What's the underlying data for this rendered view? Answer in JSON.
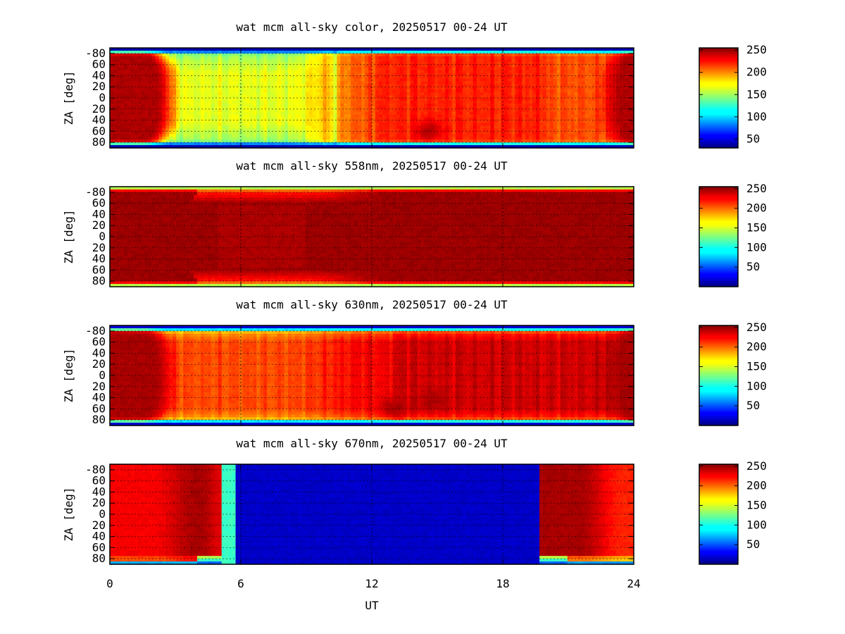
{
  "chart_data": [
    {
      "type": "heatmap",
      "title": "wat mcm all-sky color, 20250517 00-24 UT",
      "ylabel": "ZA [deg]",
      "xlim": [
        0,
        24
      ],
      "ylim": [
        -90,
        90
      ],
      "y_ticks": [
        -80,
        -60,
        -40,
        -20,
        0,
        20,
        40,
        60,
        80
      ],
      "y_tick_labels": [
        "-80",
        "60",
        "40",
        "20",
        "0",
        "20",
        "40",
        "60",
        "80"
      ],
      "colorbar": {
        "range": [
          30,
          255
        ],
        "ticks": [
          50,
          100,
          150,
          200,
          250
        ],
        "colormap": "jet"
      },
      "features": {
        "edge_value": 40,
        "night_value": 245,
        "dawn_center_ut": 3.6,
        "dusk_center_ut": 22.0,
        "day_center_value": 165,
        "day_late_value": 210,
        "dark_patch": {
          "ut": 14.6,
          "za": 60,
          "value": 245
        },
        "bright_streaks_ut": [
          17.2,
          10.3
        ]
      },
      "grid": true
    },
    {
      "type": "heatmap",
      "title": "wat mcm all-sky 558nm, 20250517 00-24 UT",
      "ylabel": "ZA [deg]",
      "xlim": [
        0,
        24
      ],
      "ylim": [
        -90,
        90
      ],
      "y_ticks": [
        -80,
        -60,
        -40,
        -20,
        0,
        20,
        40,
        60,
        80
      ],
      "y_tick_labels": [
        "-80",
        "60",
        "40",
        "20",
        "0",
        "20",
        "40",
        "60",
        "80"
      ],
      "colorbar": {
        "range": [
          0,
          255
        ],
        "ticks": [
          50,
          100,
          150,
          200,
          250
        ],
        "colormap": "jet"
      },
      "features": {
        "edge_value": 140,
        "night_value": 248,
        "day_center_value": 240,
        "day_edge_value": 215
      },
      "grid": true
    },
    {
      "type": "heatmap",
      "title": "wat mcm all-sky 630nm, 20250517 00-24 UT",
      "ylabel": "ZA [deg]",
      "xlim": [
        0,
        24
      ],
      "ylim": [
        -90,
        90
      ],
      "y_ticks": [
        -80,
        -60,
        -40,
        -20,
        0,
        20,
        40,
        60,
        80
      ],
      "y_tick_labels": [
        "-80",
        "60",
        "40",
        "20",
        "0",
        "20",
        "40",
        "60",
        "80"
      ],
      "colorbar": {
        "range": [
          0,
          255
        ],
        "ticks": [
          50,
          100,
          150,
          200,
          250
        ],
        "colormap": "jet"
      },
      "features": {
        "edge_value": 20,
        "night_value": 245,
        "dawn_center_ut": 3.5,
        "dusk_center_ut": 22.0,
        "day_center_value": 205,
        "day_late_value": 225,
        "dark_patches": [
          {
            "ut": 13.0,
            "za": 60,
            "value": 245
          },
          {
            "ut": 14.8,
            "za": 45,
            "value": 245
          }
        ]
      },
      "grid": true
    },
    {
      "type": "heatmap",
      "title": "wat mcm all-sky 670nm, 20250517 00-24 UT",
      "xlabel": "UT",
      "ylabel": "ZA [deg]",
      "xlim": [
        0,
        24
      ],
      "ylim": [
        -90,
        90
      ],
      "x_ticks": [
        0,
        6,
        12,
        18,
        24
      ],
      "y_ticks": [
        -80,
        -60,
        -40,
        -20,
        0,
        20,
        40,
        60,
        80
      ],
      "y_tick_labels": [
        "-80",
        "60",
        "40",
        "20",
        "0",
        "20",
        "40",
        "60",
        "80"
      ],
      "colorbar": {
        "range": [
          0,
          255
        ],
        "ticks": [
          50,
          100,
          150,
          200,
          250
        ],
        "colormap": "jet"
      },
      "features": {
        "day_value": 18,
        "blank_start_ut": 5.7,
        "blank_end_ut": 19.7,
        "transition_band_ut": [
          5.1,
          5.7
        ],
        "transition_value": 110,
        "night_value": 245,
        "night_edge_value": 215
      },
      "grid": true
    }
  ]
}
